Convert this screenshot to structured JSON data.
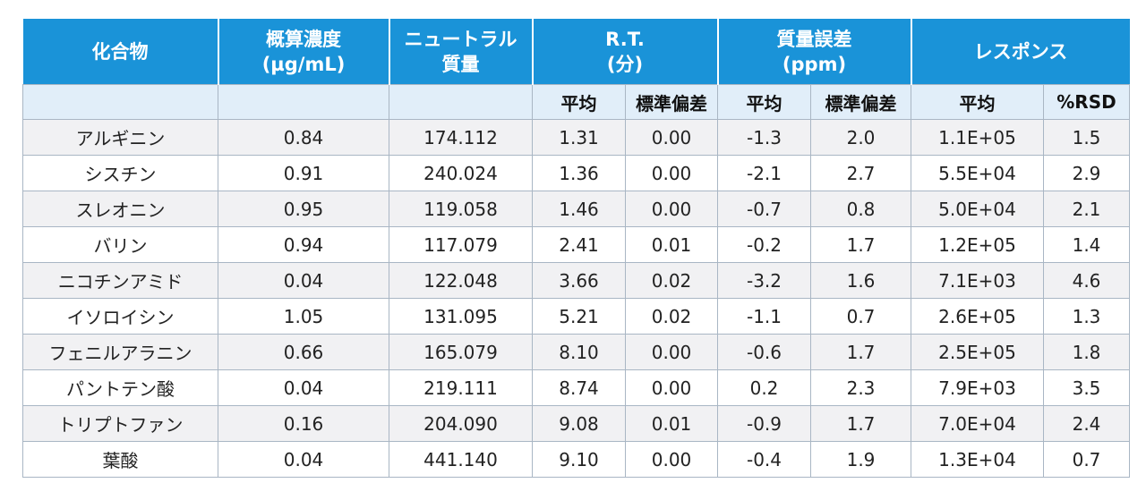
{
  "headers": {
    "compound": "化合物",
    "concentration": [
      "概算濃度",
      "(µg/mL)"
    ],
    "neutral_mass": [
      "ニュートラル",
      "質量"
    ],
    "rt": [
      "R.T.",
      "(分)"
    ],
    "mass_error": [
      "質量誤差",
      "(ppm)"
    ],
    "response": "レスポンス"
  },
  "subheaders": {
    "rt_mean": "平均",
    "rt_sd": "標準偏差",
    "me_mean": "平均",
    "me_sd": "標準偏差",
    "resp_mean": "平均",
    "resp_rsd": "%RSD"
  },
  "rows": [
    [
      "アルギニン",
      "0.84",
      "174.112",
      "1.31",
      "0.00",
      "-1.3",
      "2.0",
      "1.1E+05",
      "1.5"
    ],
    [
      "シスチン",
      "0.91",
      "240.024",
      "1.36",
      "0.00",
      "-2.1",
      "2.7",
      "5.5E+04",
      "2.9"
    ],
    [
      "スレオニン",
      "0.95",
      "119.058",
      "1.46",
      "0.00",
      "-0.7",
      "0.8",
      "5.0E+04",
      "2.1"
    ],
    [
      "バリン",
      "0.94",
      "117.079",
      "2.41",
      "0.01",
      "-0.2",
      "1.7",
      "1.2E+05",
      "1.4"
    ],
    [
      "ニコチンアミド",
      "0.04",
      "122.048",
      "3.66",
      "0.02",
      "-3.2",
      "1.6",
      "7.1E+03",
      "4.6"
    ],
    [
      "イソロイシン",
      "1.05",
      "131.095",
      "5.21",
      "0.02",
      "-1.1",
      "0.7",
      "2.6E+05",
      "1.3"
    ],
    [
      "フェニルアラニン",
      "0.66",
      "165.079",
      "8.10",
      "0.00",
      "-0.6",
      "1.7",
      "2.5E+05",
      "1.8"
    ],
    [
      "パントテン酸",
      "0.04",
      "219.111",
      "8.74",
      "0.00",
      "0.2",
      "2.3",
      "7.9E+03",
      "3.5"
    ],
    [
      "トリプトファン",
      "0.16",
      "204.090",
      "9.08",
      "0.01",
      "-0.9",
      "1.7",
      "7.0E+04",
      "2.4"
    ],
    [
      "葉酸",
      "0.04",
      "441.140",
      "9.10",
      "0.00",
      "-0.4",
      "1.9",
      "1.3E+04",
      "0.7"
    ]
  ],
  "colors": {
    "header_bg": "#1a93d8",
    "subheader_bg": "#e1eef9",
    "row_alt_bg": "#f1f1f3",
    "border": "#a9b6c4"
  }
}
